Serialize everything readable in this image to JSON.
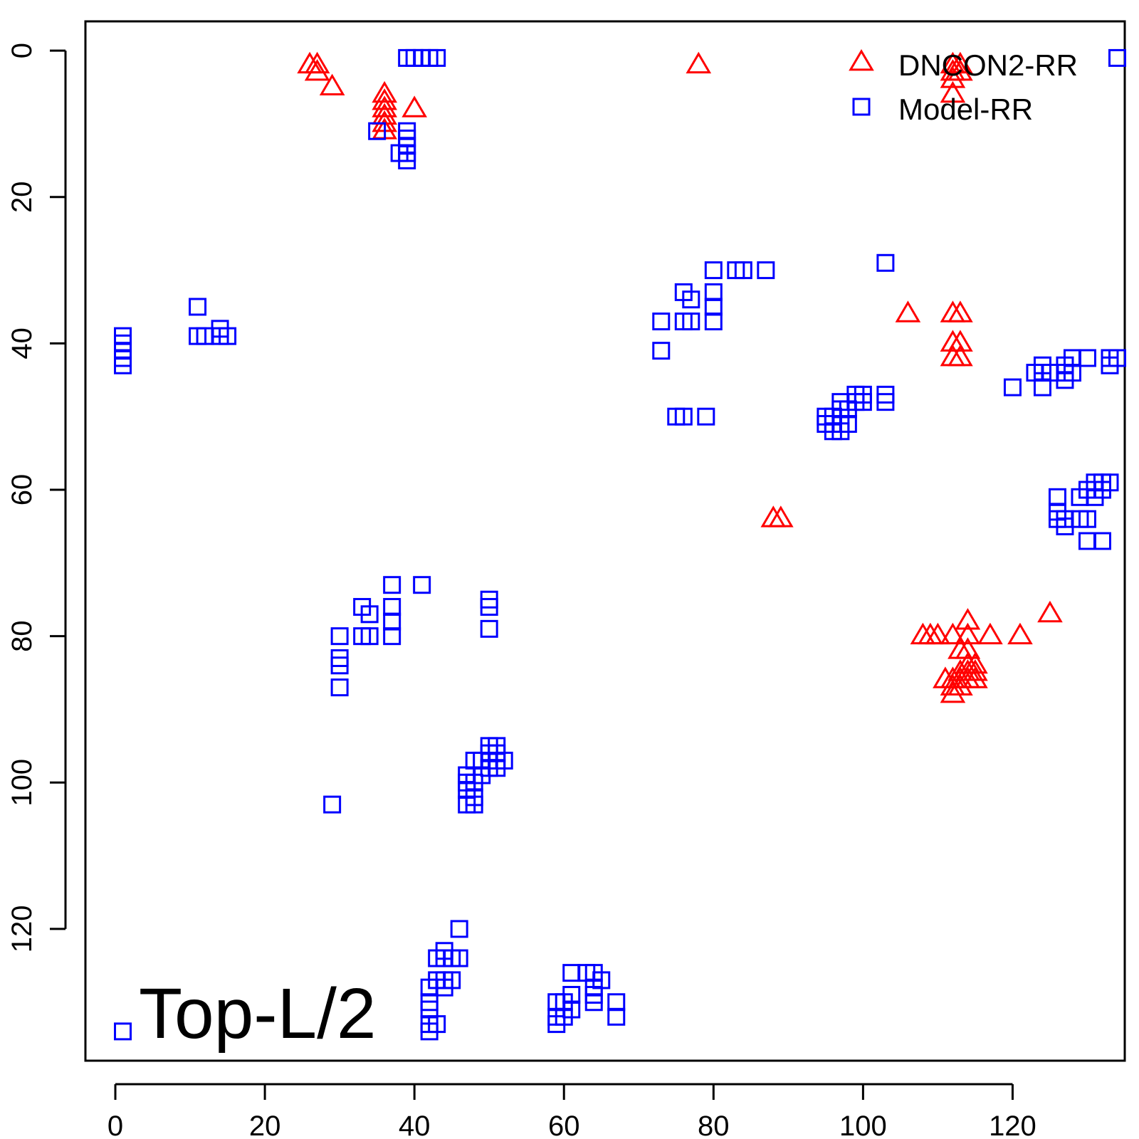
{
  "chart_data": {
    "type": "scatter",
    "panel_label": "Top-L/2",
    "xlim": [
      -4,
      135
    ],
    "ylim": [
      -4,
      138
    ],
    "y_reversed": true,
    "grid": false,
    "legend_position": "top-right",
    "x_ticks": [
      0,
      20,
      40,
      60,
      80,
      100,
      120
    ],
    "y_ticks": [
      0,
      20,
      40,
      60,
      80,
      100,
      120
    ],
    "series": [
      {
        "name": "DNCON2-RR",
        "marker": "triangle",
        "color": "#ff0000",
        "points": [
          [
            26,
            2
          ],
          [
            27,
            2
          ],
          [
            27,
            3
          ],
          [
            29,
            5
          ],
          [
            36,
            6
          ],
          [
            36,
            7
          ],
          [
            36,
            8
          ],
          [
            36,
            9
          ],
          [
            36,
            10
          ],
          [
            36,
            11
          ],
          [
            40,
            8
          ],
          [
            78,
            2
          ],
          [
            112,
            2
          ],
          [
            113,
            2
          ],
          [
            112,
            3
          ],
          [
            113,
            3
          ],
          [
            112,
            4
          ],
          [
            112,
            6
          ],
          [
            106,
            36
          ],
          [
            112,
            36
          ],
          [
            113,
            36
          ],
          [
            112,
            40
          ],
          [
            113,
            40
          ],
          [
            112,
            42
          ],
          [
            113,
            42
          ],
          [
            88,
            64
          ],
          [
            89,
            64
          ],
          [
            108,
            80
          ],
          [
            109,
            80
          ],
          [
            110,
            80
          ],
          [
            112,
            80
          ],
          [
            114,
            80
          ],
          [
            117,
            80
          ],
          [
            121,
            80
          ],
          [
            125,
            77
          ],
          [
            114,
            78
          ],
          [
            114,
            82
          ],
          [
            113,
            82
          ],
          [
            114,
            84
          ],
          [
            115,
            84
          ],
          [
            113,
            85
          ],
          [
            114,
            85
          ],
          [
            115,
            85
          ],
          [
            111,
            86
          ],
          [
            112,
            86
          ],
          [
            113,
            86
          ],
          [
            114,
            86
          ],
          [
            115,
            86
          ],
          [
            112,
            87
          ],
          [
            113,
            87
          ],
          [
            112,
            88
          ]
        ]
      },
      {
        "name": "Model-RR",
        "marker": "square",
        "color": "#0000ff",
        "points": [
          [
            39,
            1
          ],
          [
            40,
            1
          ],
          [
            41,
            1
          ],
          [
            42,
            1
          ],
          [
            43,
            1
          ],
          [
            35,
            11
          ],
          [
            39,
            11
          ],
          [
            39,
            12
          ],
          [
            39,
            13
          ],
          [
            38,
            14
          ],
          [
            39,
            14
          ],
          [
            39,
            15
          ],
          [
            1,
            39
          ],
          [
            1,
            40
          ],
          [
            1,
            41
          ],
          [
            1,
            42
          ],
          [
            1,
            43
          ],
          [
            11,
            35
          ],
          [
            11,
            39
          ],
          [
            12,
            39
          ],
          [
            14,
            38
          ],
          [
            14,
            39
          ],
          [
            15,
            39
          ],
          [
            80,
            30
          ],
          [
            83,
            30
          ],
          [
            84,
            30
          ],
          [
            87,
            30
          ],
          [
            103,
            29
          ],
          [
            76,
            33
          ],
          [
            77,
            34
          ],
          [
            80,
            33
          ],
          [
            80,
            35
          ],
          [
            73,
            37
          ],
          [
            76,
            37
          ],
          [
            77,
            37
          ],
          [
            80,
            37
          ],
          [
            73,
            41
          ],
          [
            75,
            50
          ],
          [
            76,
            50
          ],
          [
            79,
            50
          ],
          [
            95,
            50
          ],
          [
            96,
            50
          ],
          [
            95,
            51
          ],
          [
            96,
            51
          ],
          [
            97,
            51
          ],
          [
            98,
            51
          ],
          [
            96,
            52
          ],
          [
            97,
            52
          ],
          [
            97,
            48
          ],
          [
            97,
            49
          ],
          [
            98,
            49
          ],
          [
            99,
            47
          ],
          [
            99,
            48
          ],
          [
            100,
            47
          ],
          [
            100,
            48
          ],
          [
            103,
            47
          ],
          [
            103,
            48
          ],
          [
            120,
            46
          ],
          [
            123,
            44
          ],
          [
            124,
            43
          ],
          [
            124,
            44
          ],
          [
            124,
            46
          ],
          [
            125,
            44
          ],
          [
            127,
            43
          ],
          [
            127,
            44
          ],
          [
            127,
            45
          ],
          [
            128,
            42
          ],
          [
            128,
            44
          ],
          [
            130,
            42
          ],
          [
            133,
            42
          ],
          [
            133,
            43
          ],
          [
            134,
            42
          ],
          [
            126,
            61
          ],
          [
            126,
            63
          ],
          [
            126,
            64
          ],
          [
            127,
            64
          ],
          [
            127,
            65
          ],
          [
            129,
            61
          ],
          [
            129,
            64
          ],
          [
            130,
            60
          ],
          [
            130,
            64
          ],
          [
            131,
            59
          ],
          [
            131,
            61
          ],
          [
            132,
            59
          ],
          [
            132,
            60
          ],
          [
            133,
            59
          ],
          [
            130,
            67
          ],
          [
            132,
            67
          ],
          [
            37,
            73
          ],
          [
            41,
            73
          ],
          [
            33,
            76
          ],
          [
            34,
            77
          ],
          [
            37,
            76
          ],
          [
            37,
            78
          ],
          [
            33,
            80
          ],
          [
            34,
            80
          ],
          [
            37,
            80
          ],
          [
            30,
            80
          ],
          [
            30,
            83
          ],
          [
            30,
            84
          ],
          [
            30,
            87
          ],
          [
            50,
            75
          ],
          [
            50,
            76
          ],
          [
            50,
            79
          ],
          [
            47,
            99
          ],
          [
            47,
            100
          ],
          [
            47,
            101
          ],
          [
            47,
            103
          ],
          [
            48,
            97
          ],
          [
            48,
            100
          ],
          [
            48,
            102
          ],
          [
            48,
            103
          ],
          [
            49,
            97
          ],
          [
            49,
            99
          ],
          [
            50,
            95
          ],
          [
            50,
            96
          ],
          [
            50,
            98
          ],
          [
            51,
            95
          ],
          [
            51,
            96
          ],
          [
            51,
            97
          ],
          [
            51,
            98
          ],
          [
            52,
            97
          ],
          [
            29,
            103
          ],
          [
            46,
            120
          ],
          [
            44,
            123
          ],
          [
            43,
            124
          ],
          [
            44,
            124
          ],
          [
            45,
            124
          ],
          [
            46,
            124
          ],
          [
            43,
            127
          ],
          [
            44,
            127
          ],
          [
            44,
            128
          ],
          [
            45,
            127
          ],
          [
            42,
            128
          ],
          [
            42,
            130
          ],
          [
            42,
            131
          ],
          [
            42,
            133
          ],
          [
            43,
            133
          ],
          [
            42,
            134
          ],
          [
            61,
            126
          ],
          [
            63,
            126
          ],
          [
            64,
            126
          ],
          [
            64,
            128
          ],
          [
            65,
            127
          ],
          [
            64,
            129
          ],
          [
            64,
            130
          ],
          [
            61,
            129
          ],
          [
            59,
            130
          ],
          [
            60,
            130
          ],
          [
            61,
            131
          ],
          [
            59,
            132
          ],
          [
            60,
            132
          ],
          [
            59,
            133
          ],
          [
            67,
            130
          ],
          [
            67,
            132
          ],
          [
            1,
            134
          ],
          [
            134,
            1
          ]
        ]
      }
    ]
  }
}
